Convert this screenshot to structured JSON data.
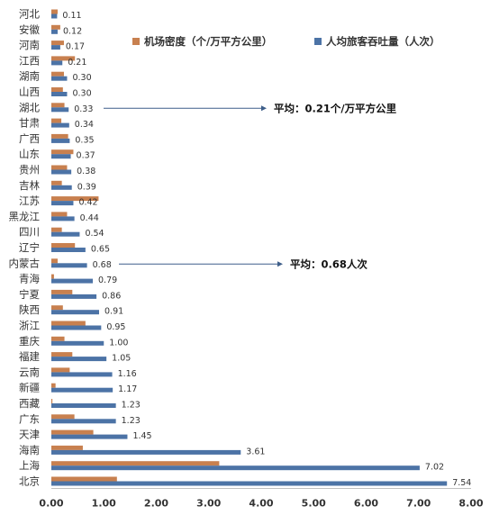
{
  "chart_data": {
    "type": "bar",
    "orientation": "horizontal",
    "categories": [
      "河北",
      "安徽",
      "河南",
      "江西",
      "湖南",
      "山西",
      "湖北",
      "甘肃",
      "广西",
      "山东",
      "贵州",
      "吉林",
      "江苏",
      "黑龙江",
      "四川",
      "辽宁",
      "内蒙古",
      "青海",
      "宁夏",
      "陕西",
      "浙江",
      "重庆",
      "福建",
      "云南",
      "新疆",
      "西藏",
      "广东",
      "天津",
      "海南",
      "上海",
      "北京"
    ],
    "series": [
      {
        "name": "机场密度（个/万平方公里）",
        "color": "#c8804f",
        "values": [
          0.12,
          0.17,
          0.24,
          0.45,
          0.24,
          0.22,
          0.25,
          0.19,
          0.32,
          0.42,
          0.3,
          0.2,
          0.9,
          0.3,
          0.2,
          0.45,
          0.12,
          0.05,
          0.4,
          0.22,
          0.65,
          0.25,
          0.4,
          0.35,
          0.08,
          0.02,
          0.44,
          0.8,
          0.6,
          3.2,
          1.25
        ]
      },
      {
        "name": "人均旅客吞吐量（人次）",
        "color": "#4c73a6",
        "values": [
          0.11,
          0.12,
          0.17,
          0.21,
          0.3,
          0.3,
          0.33,
          0.34,
          0.35,
          0.37,
          0.38,
          0.39,
          0.42,
          0.44,
          0.54,
          0.65,
          0.68,
          0.79,
          0.86,
          0.91,
          0.95,
          1.0,
          1.05,
          1.16,
          1.17,
          1.23,
          1.23,
          1.45,
          3.61,
          7.02,
          7.54
        ],
        "labels": [
          "0.11",
          "0.12",
          "0.17",
          "0.21",
          "0.30",
          "0.30",
          "0.33",
          "0.34",
          "0.35",
          "0.37",
          "0.38",
          "0.39",
          "0.42",
          "0.44",
          "0.54",
          "0.65",
          "0.68",
          "0.79",
          "0.86",
          "0.91",
          "0.95",
          "1.00",
          "1.05",
          "1.16",
          "1.17",
          "1.23",
          "1.23",
          "1.45",
          "3.61",
          "7.02",
          "7.54"
        ]
      }
    ],
    "xlim": [
      0,
      8
    ],
    "xticks": [
      "0.00",
      "1.00",
      "2.00",
      "3.00",
      "4.00",
      "5.00",
      "6.00",
      "7.00",
      "8.00"
    ],
    "legend_position": "top-right",
    "annotations": [
      {
        "text": "平均：0.21个/万平方公里",
        "category": "湖北"
      },
      {
        "text": "平均：0.68人次",
        "category": "内蒙古"
      }
    ],
    "grid": false
  }
}
